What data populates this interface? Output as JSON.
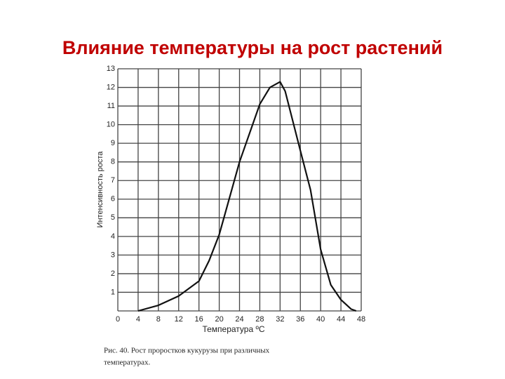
{
  "chart_data": {
    "type": "line",
    "title": "Влияние температуры на рост растений",
    "xlabel": "Температура ºС",
    "ylabel": "Интенсивность роста",
    "caption": [
      "Рис. 40. Рост проростков кукурузы при различных",
      "температурах."
    ],
    "x": [
      4,
      8,
      12,
      16,
      18,
      20,
      24,
      28,
      30,
      32,
      33,
      36,
      38,
      40,
      42,
      44,
      46,
      47
    ],
    "series": [
      {
        "color": "#111111",
        "values": [
          0,
          0.3,
          0.8,
          1.6,
          2.7,
          4.1,
          8.0,
          11.1,
          12.0,
          12.3,
          11.8,
          8.6,
          6.5,
          3.3,
          1.4,
          0.6,
          0.1,
          0
        ]
      }
    ],
    "xlim": [
      0,
      48
    ],
    "xticks": [
      0,
      4,
      8,
      12,
      16,
      20,
      24,
      28,
      32,
      36,
      40,
      44,
      48
    ],
    "ylim": [
      0,
      13
    ],
    "yticks": [
      1,
      2,
      3,
      4,
      5,
      6,
      7,
      8,
      9,
      10,
      11,
      12,
      13
    ],
    "grid": true
  }
}
